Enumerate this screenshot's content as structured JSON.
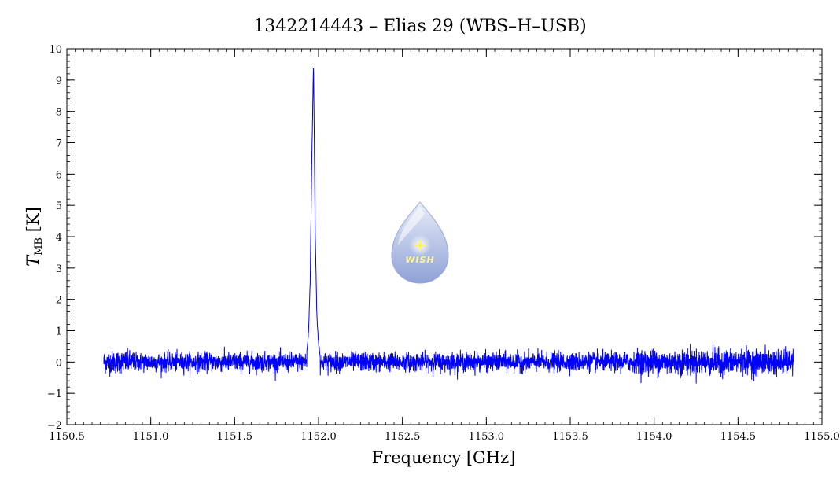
{
  "chart_data": {
    "type": "line",
    "title": "1342214443 – Elias 29 (WBS–H–USB)",
    "xlabel": "Frequency [GHz]",
    "ylabel_main": "T",
    "ylabel_sub": "MB",
    "ylabel_unit": " [K]",
    "xlim": [
      1150.5,
      1155.0
    ],
    "ylim": [
      -2,
      10
    ],
    "x_ticks": [
      1150.5,
      1151.0,
      1151.5,
      1152.0,
      1152.5,
      1153.0,
      1153.5,
      1154.0,
      1154.5,
      1155.0
    ],
    "x_tick_labels": [
      "1150.5",
      "1151.0",
      "1151.5",
      "1152.0",
      "1152.5",
      "1153.0",
      "1153.5",
      "1154.0",
      "1154.5",
      "1155.0"
    ],
    "y_ticks": [
      -2,
      -1,
      0,
      1,
      2,
      3,
      4,
      5,
      6,
      7,
      8,
      9,
      10
    ],
    "y_tick_labels": [
      "−2",
      "−1",
      "0",
      "1",
      "2",
      "3",
      "4",
      "5",
      "6",
      "7",
      "8",
      "9",
      "10"
    ],
    "series_color": "#0000ff",
    "series": [
      {
        "x_range": [
          1150.72,
          1154.83
        ],
        "baseline": 0.0,
        "noise_rms": 0.15,
        "peak": {
          "center": 1151.97,
          "amplitude": 9.55,
          "width_ghz": 0.006
        },
        "peak_profile": [
          {
            "x": 1151.93,
            "y": 0.3
          },
          {
            "x": 1151.94,
            "y": 0.9
          },
          {
            "x": 1151.95,
            "y": 2.5
          },
          {
            "x": 1151.96,
            "y": 6.5
          },
          {
            "x": 1151.97,
            "y": 9.55
          },
          {
            "x": 1151.98,
            "y": 4.2
          },
          {
            "x": 1151.99,
            "y": 1.5
          },
          {
            "x": 1152.0,
            "y": 0.6
          },
          {
            "x": 1152.01,
            "y": 0.2
          }
        ]
      }
    ],
    "grid": false,
    "legend": "none"
  },
  "logo": {
    "icon": "wish-drop-logo",
    "text": "WISH",
    "color_top": "#e8ecf8",
    "color_bottom": "#8fa2d6",
    "star_color": "#fff36b"
  }
}
